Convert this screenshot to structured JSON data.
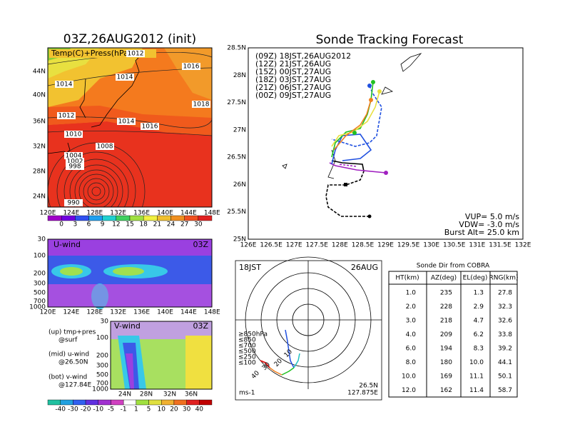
{
  "left_map": {
    "title": "03Z,26AUG2012 (init)",
    "label": "Temp(C)+Press(hPa)",
    "lat_labels": [
      "44N",
      "40N",
      "36N",
      "32N",
      "28N",
      "24N"
    ],
    "lon_labels": [
      "120E",
      "124E",
      "128E",
      "132E",
      "136E",
      "140E",
      "144E",
      "148E"
    ],
    "isobars": [
      "1012",
      "1014",
      "1014",
      "1016",
      "1018",
      "1012",
      "1014",
      "1016",
      "1010",
      "1008",
      "1004",
      "1002",
      "998",
      "990"
    ],
    "colorbar": [
      "0",
      "3",
      "6",
      "9",
      "12",
      "15",
      "18",
      "21",
      "24",
      "27",
      "30"
    ]
  },
  "u_wind": {
    "label": "U-wind",
    "time": "03Z",
    "p_labels": [
      "30",
      "100",
      "200",
      "300",
      "500",
      "700",
      "1000"
    ],
    "lon_labels": [
      "120E",
      "124E",
      "128E",
      "132E",
      "136E",
      "140E",
      "144E",
      "148E"
    ]
  },
  "v_wind": {
    "label": "V-wind",
    "time": "03Z",
    "p_labels": [
      "30",
      "100",
      "200",
      "300",
      "500",
      "700",
      "1000"
    ],
    "lat_labels": [
      "24N",
      "28N",
      "32N",
      "36N"
    ]
  },
  "notes": [
    "(up) tmp+pres",
    "@surf",
    "(mid) u-wind",
    "@26.50N",
    "(bot) v-wind",
    "@127.84E"
  ],
  "wind_colorbar": [
    "-40",
    "-30",
    "-20",
    "-10",
    "-5",
    "-1",
    "1",
    "5",
    "10",
    "20",
    "30",
    "40"
  ],
  "track": {
    "title": "Sonde Tracking Forecast",
    "legend": [
      "(09Z)  18JST,26AUG2012",
      "(12Z)  21JST,26AUG",
      "(15Z)  00JST,27AUG",
      "(18Z)  03JST,27AUG",
      "(21Z)  06JST,27AUG",
      "(00Z)  09JST,27AUG"
    ],
    "lat_labels": [
      "28.5N",
      "28N",
      "27.5N",
      "27N",
      "26.5N",
      "26N",
      "25.5N",
      "25N"
    ],
    "lon_labels": [
      "126E",
      "126.5E",
      "127E",
      "127.5E",
      "128E",
      "128.5E",
      "129E",
      "129.5E",
      "130E",
      "130.5E",
      "131E",
      "131.5E",
      "132E"
    ],
    "params": [
      "VUP= 5.0 m/s",
      "VDW= -3.0 m/s",
      "Burst Alt= 25.0 km"
    ]
  },
  "hodograph": {
    "time": "18JST",
    "date": "26AUG",
    "unit": "ms-1",
    "lat": "26.5N",
    "lon": "127.875E",
    "legend": [
      "≥850hPa",
      "≤850",
      "≤700",
      "≤500",
      "≤250",
      "≤100"
    ],
    "ring_labels": [
      "10",
      "20",
      "30",
      "40"
    ]
  },
  "table": {
    "title": "Sonde Dir from COBRA",
    "headers": [
      "HT(km)",
      "AZ(deg)",
      "EL(deg)",
      "RNG(km)"
    ],
    "rows": [
      [
        "1.0",
        "235",
        "1.3",
        "27.8"
      ],
      [
        "2.0",
        "228",
        "2.9",
        "32.3"
      ],
      [
        "3.0",
        "218",
        "4.7",
        "32.6"
      ],
      [
        "4.0",
        "209",
        "6.2",
        "33.8"
      ],
      [
        "6.0",
        "194",
        "8.3",
        "39.2"
      ],
      [
        "8.0",
        "180",
        "10.0",
        "44.1"
      ],
      [
        "10.0",
        "169",
        "11.1",
        "50.1"
      ],
      [
        "12.0",
        "162",
        "11.4",
        "58.7"
      ]
    ]
  }
}
